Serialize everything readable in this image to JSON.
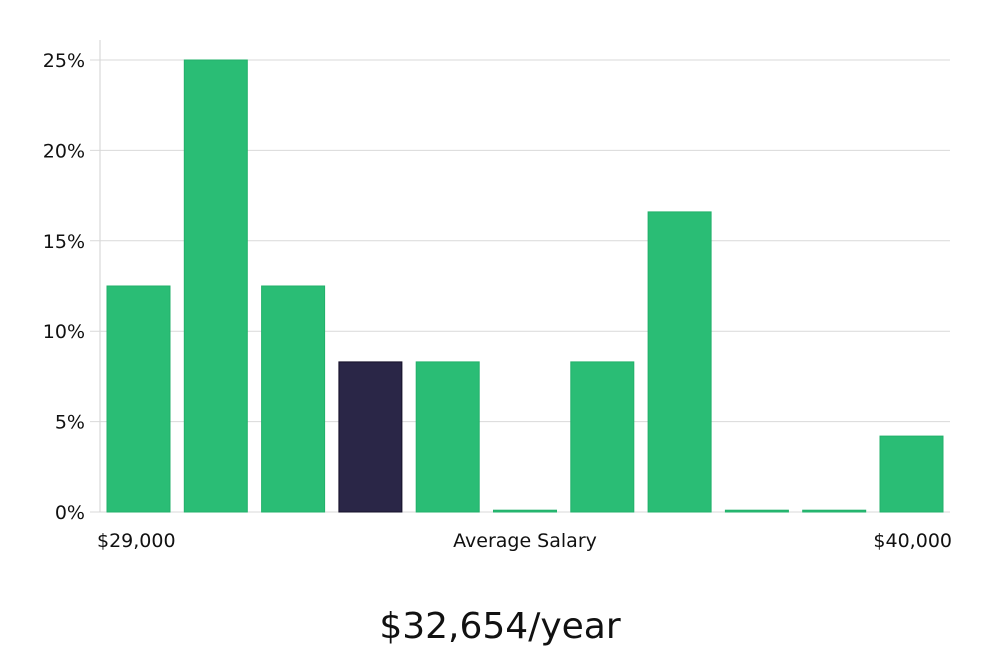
{
  "chart_data": {
    "type": "bar",
    "title": "",
    "xlabel": "Average Salary",
    "ylabel": "",
    "x_range_labels": {
      "min": "$29,000",
      "max": "$40,000"
    },
    "ylim": [
      0,
      26
    ],
    "yticks": [
      0,
      5,
      10,
      15,
      20,
      25
    ],
    "ytick_labels": [
      "0%",
      "5%",
      "10%",
      "15%",
      "20%",
      "25%"
    ],
    "values": [
      12.5,
      25.0,
      12.5,
      8.3,
      8.3,
      0.1,
      8.3,
      16.6,
      0.1,
      0.1,
      4.2
    ],
    "highlight_index": 3,
    "colors": {
      "bar": "#2abd75",
      "highlight": "#2a2647",
      "highlight_border": "#141028",
      "grid": "#d9d9d9"
    }
  },
  "summary": {
    "average_salary": "$32,654/year"
  }
}
